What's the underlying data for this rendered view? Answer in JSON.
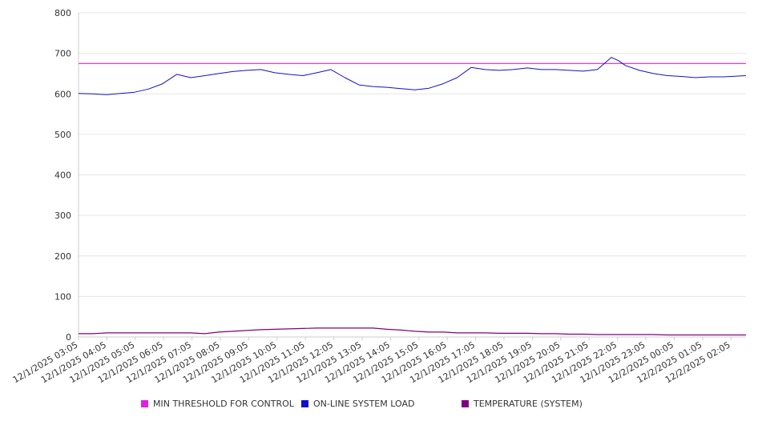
{
  "chart_data": {
    "type": "line",
    "title": "",
    "xlabel": "",
    "ylabel": "",
    "ylim": [
      0,
      800
    ],
    "yticks": [
      0,
      100,
      200,
      300,
      400,
      500,
      600,
      700,
      800
    ],
    "xtick_labels": [
      "12/1/2025 03:05",
      "12/1/2025 04:05",
      "12/1/2025 05:05",
      "12/1/2025 06:05",
      "12/1/2025 07:05",
      "12/1/2025 08:05",
      "12/1/2025 09:05",
      "12/1/2025 10:05",
      "12/1/2025 11:05",
      "12/1/2025 12:05",
      "12/1/2025 13:05",
      "12/1/2025 14:05",
      "12/1/2025 15:05",
      "12/1/2025 16:05",
      "12/1/2025 17:05",
      "12/1/2025 18:05",
      "12/1/2025 19:05",
      "12/1/2025 20:05",
      "12/1/2025 21:05",
      "12/1/2025 22:05",
      "12/1/2025 23:05",
      "12/2/2025 00:05",
      "12/2/2025 01:05",
      "12/2/2025 02:05"
    ],
    "x_hours": [
      0,
      0.5,
      1,
      1.5,
      2,
      2.5,
      3,
      3.5,
      4,
      4.5,
      5,
      5.5,
      6,
      6.5,
      7,
      7.5,
      8,
      8.5,
      9,
      9.5,
      10,
      10.5,
      11,
      11.5,
      12,
      12.5,
      13,
      13.5,
      14,
      14.5,
      15,
      15.5,
      16,
      16.5,
      17,
      17.5,
      18,
      18.5,
      19,
      19.25,
      19.5,
      20,
      20.5,
      21,
      21.5,
      22,
      22.5,
      23,
      23.8
    ],
    "grid": true,
    "legend_position": "bottom",
    "series": [
      {
        "name": "MIN THRESHOLD FOR CONTROL",
        "color": "#e020e0",
        "values": [
          675,
          675,
          675,
          675,
          675,
          675,
          675,
          675,
          675,
          675,
          675,
          675,
          675,
          675,
          675,
          675,
          675,
          675,
          675,
          675,
          675,
          675,
          675,
          675,
          675,
          675,
          675,
          675,
          675,
          675,
          675,
          675,
          675,
          675,
          675,
          675,
          675,
          675,
          675,
          675,
          675,
          675,
          675,
          675,
          675,
          675,
          675,
          675,
          675
        ]
      },
      {
        "name": "ON-LINE SYSTEM LOAD",
        "color": "#1010cc",
        "values": [
          601,
          600,
          598,
          601,
          604,
          612,
          625,
          648,
          640,
          645,
          650,
          655,
          658,
          660,
          652,
          648,
          645,
          652,
          660,
          640,
          622,
          618,
          616,
          613,
          610,
          614,
          625,
          640,
          665,
          660,
          658,
          660,
          664,
          660,
          660,
          658,
          656,
          660,
          690,
          682,
          670,
          658,
          650,
          645,
          643,
          640,
          642,
          642,
          645
        ]
      },
      {
        "name": "TEMPERATURE (SYSTEM)",
        "color": "#800080",
        "values": [
          8,
          8,
          10,
          10,
          10,
          10,
          10,
          10,
          10,
          8,
          12,
          14,
          16,
          18,
          19,
          20,
          21,
          22,
          22,
          22,
          22,
          22,
          19,
          17,
          14,
          12,
          12,
          10,
          10,
          10,
          9,
          9,
          9,
          8,
          8,
          7,
          7,
          6,
          6,
          6,
          6,
          6,
          6,
          5,
          5,
          5,
          5,
          5,
          5
        ]
      }
    ]
  }
}
